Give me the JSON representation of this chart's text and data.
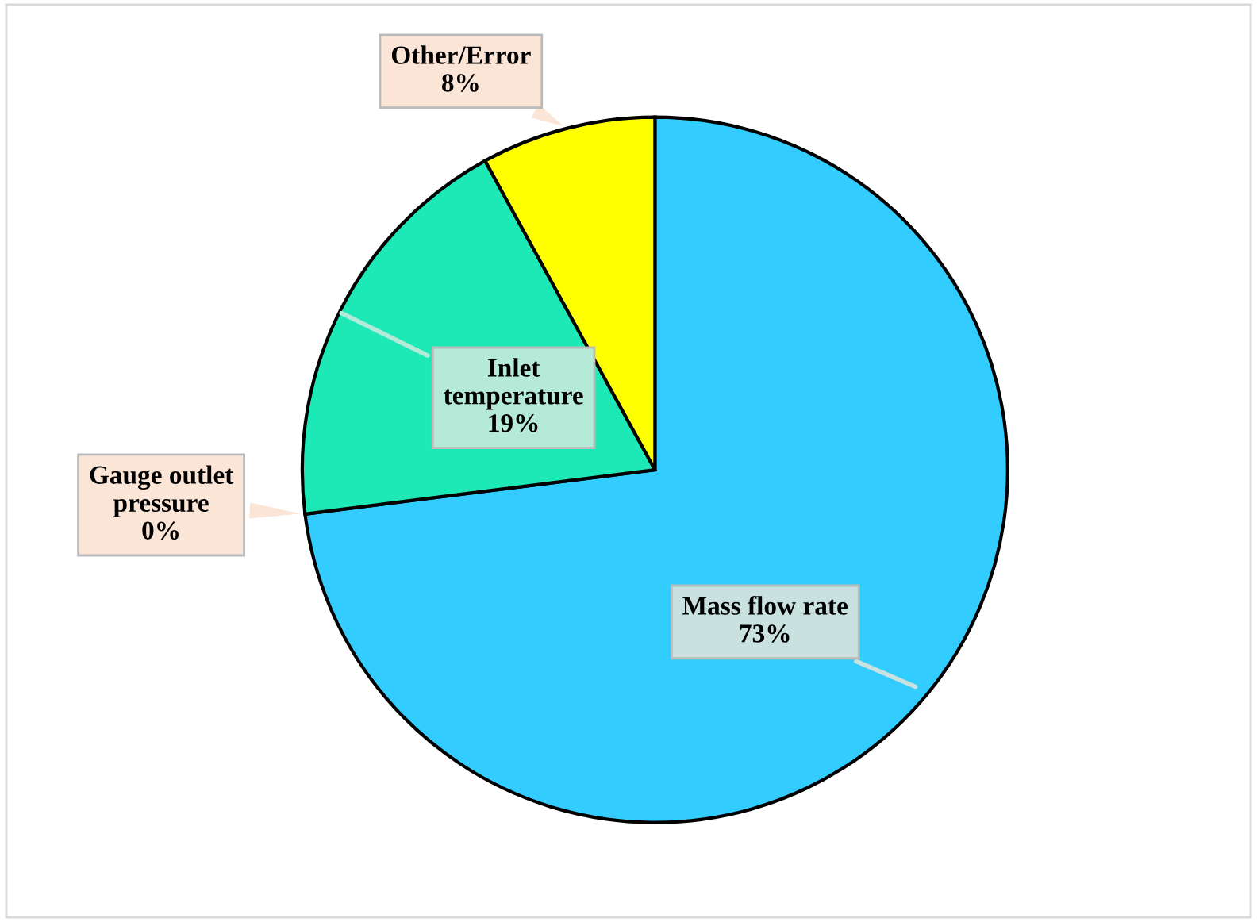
{
  "chart_data": {
    "type": "pie",
    "categories": [
      "Mass flow rate",
      "Gauge outlet pressure",
      "Inlet temperature",
      "Other/Error"
    ],
    "values": [
      73,
      0,
      19,
      8
    ],
    "value_labels": [
      "73%",
      "0%",
      "19%",
      "8%"
    ],
    "colors": [
      "#33ccff",
      "#ff9900",
      "#1de9b6",
      "#ffff00"
    ],
    "legend": false
  }
}
